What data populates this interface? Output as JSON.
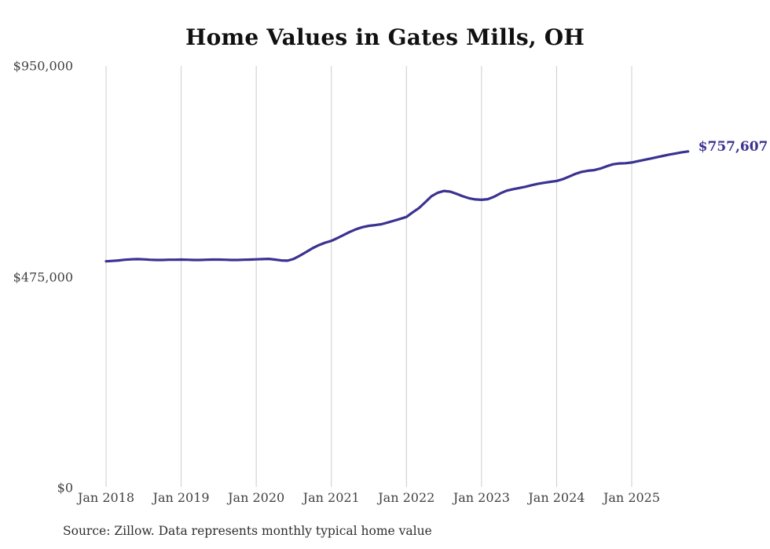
{
  "header": {
    "title": "Home Values in Gates Mills, OH"
  },
  "footer": {
    "source_text": "Source: Zillow. Data represents monthly typical home value"
  },
  "chart_data": {
    "type": "line",
    "title": "Home Values in Gates Mills, OH",
    "x_unit": "month",
    "x_range": [
      "Jan 2018",
      "Oct 2025"
    ],
    "x_tick_labels": [
      "Jan 2018",
      "Jan 2019",
      "Jan 2020",
      "Jan 2021",
      "Jan 2022",
      "Jan 2023",
      "Jan 2024",
      "Jan 2025"
    ],
    "x_tick_month_indices": [
      0,
      12,
      24,
      36,
      48,
      60,
      72,
      84
    ],
    "y_ticks": [
      {
        "label": "$950,000",
        "value": 950000
      },
      {
        "label": "$475,000",
        "value": 475000
      },
      {
        "label": "$0",
        "value": 0
      }
    ],
    "ylim": [
      0,
      950000
    ],
    "grid": "vertical",
    "legend": "none",
    "line_color": "#3a3291",
    "grid_color": "#cccccc",
    "end_label": "$757,607",
    "end_value": 757607,
    "series": [
      {
        "name": "Monthly typical home value",
        "values": [
          510000,
          511000,
          512000,
          513500,
          514500,
          515000,
          514500,
          513500,
          513000,
          513000,
          513500,
          513500,
          514000,
          513500,
          513000,
          513000,
          513500,
          514000,
          514000,
          513500,
          513000,
          513000,
          513500,
          514000,
          514500,
          515000,
          515500,
          514000,
          512000,
          511500,
          515500,
          523000,
          531000,
          539500,
          546500,
          552000,
          556000,
          562500,
          569500,
          576500,
          582500,
          587000,
          590000,
          591500,
          593500,
          597500,
          601500,
          605500,
          610000,
          620500,
          630000,
          643000,
          656500,
          664500,
          668500,
          667000,
          662000,
          656500,
          652000,
          649500,
          648500,
          650000,
          655500,
          663000,
          669000,
          672500,
          675000,
          678000,
          681500,
          684500,
          687000,
          689000,
          691000,
          695000,
          701000,
          707000,
          711500,
          714000,
          715500,
          719000,
          724000,
          728500,
          730500,
          731000,
          732500,
          735500,
          738500,
          741500,
          744500,
          747500,
          750500,
          753000,
          755500,
          757607
        ]
      }
    ]
  }
}
